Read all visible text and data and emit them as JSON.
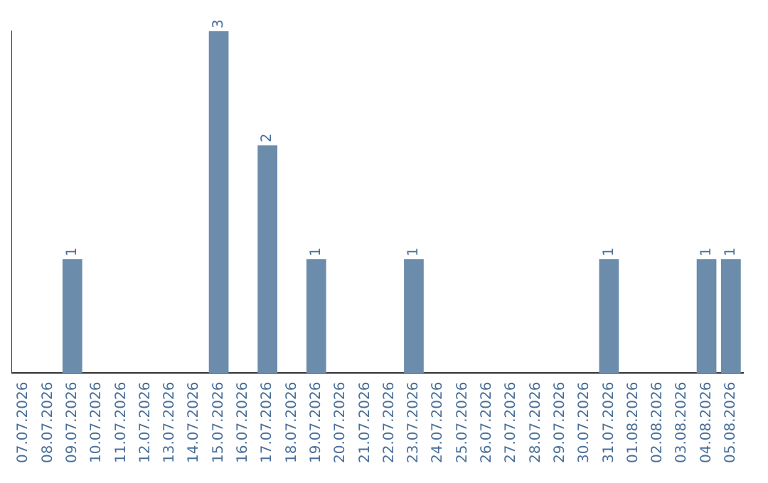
{
  "chart_data": {
    "type": "bar",
    "categories": [
      "07.07.2026",
      "08.07.2026",
      "09.07.2026",
      "10.07.2026",
      "11.07.2026",
      "12.07.2026",
      "13.07.2026",
      "14.07.2026",
      "15.07.2026",
      "16.07.2026",
      "17.07.2026",
      "18.07.2026",
      "19.07.2026",
      "20.07.2026",
      "21.07.2026",
      "22.07.2026",
      "23.07.2026",
      "24.07.2026",
      "25.07.2026",
      "26.07.2026",
      "27.07.2026",
      "28.07.2026",
      "29.07.2026",
      "30.07.2026",
      "31.07.2026",
      "01.08.2026",
      "02.08.2026",
      "03.08.2026",
      "04.08.2026",
      "05.08.2026"
    ],
    "values": [
      0,
      0,
      1,
      0,
      0,
      0,
      0,
      0,
      3,
      0,
      2,
      0,
      1,
      0,
      0,
      0,
      1,
      0,
      0,
      0,
      0,
      0,
      0,
      0,
      1,
      0,
      0,
      0,
      1,
      1
    ],
    "value_labels": [
      null,
      null,
      "1",
      null,
      null,
      null,
      null,
      null,
      "3",
      null,
      "2",
      null,
      "1",
      null,
      null,
      null,
      "1",
      null,
      null,
      null,
      null,
      null,
      null,
      null,
      "1",
      null,
      null,
      null,
      "1",
      "1"
    ],
    "color": "#6b8cab",
    "grid": false,
    "legend": false,
    "tick_labels": "x"
  }
}
